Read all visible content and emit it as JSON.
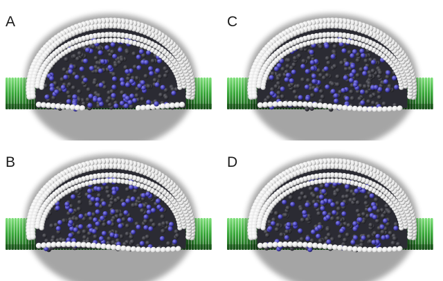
{
  "figure": {
    "panels": [
      {
        "id": "A",
        "label": "A",
        "variant": "open-bottom"
      },
      {
        "id": "C",
        "label": "C",
        "variant": "closed"
      },
      {
        "id": "B",
        "label": "B",
        "variant": "closed"
      },
      {
        "id": "D",
        "label": "D",
        "variant": "closed"
      }
    ]
  },
  "colors": {
    "background": "#ffffff",
    "lipid_heads": "#e6e6e6",
    "interior": "#2b2b33",
    "solute": "#4a45b8",
    "substrate": "#39a83a"
  }
}
